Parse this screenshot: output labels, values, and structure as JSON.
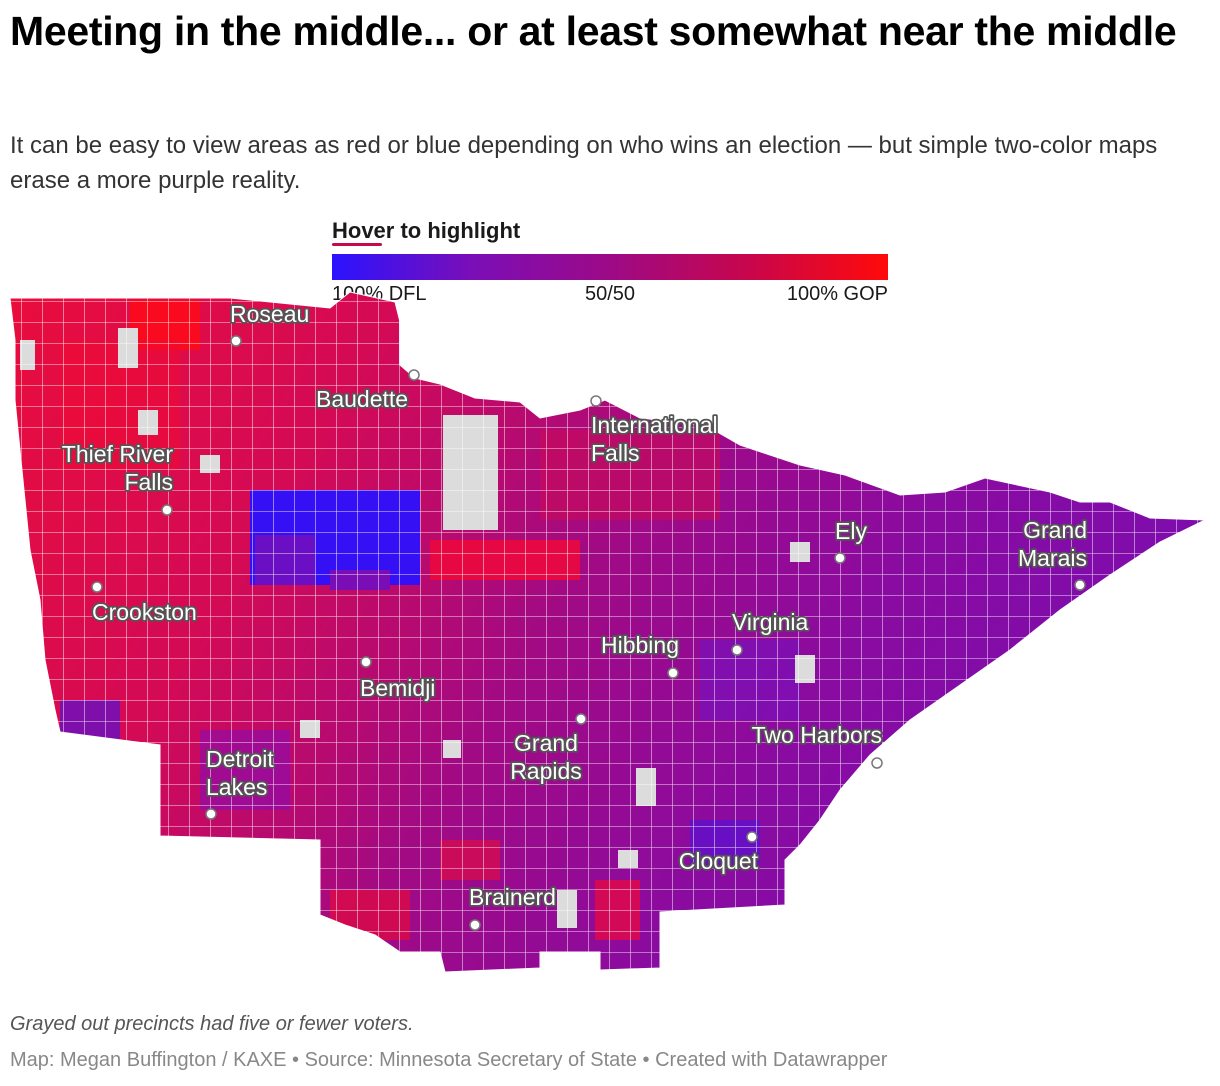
{
  "title": "Meeting in the middle... or at least somewhat near the middle",
  "subtitle": "It can be easy to view areas as red or blue depending on who wins an election — but simple two-color maps erase a more purple reality.",
  "legend": {
    "title": "Hover to highlight",
    "min_label": "100% DFL",
    "mid_label": "50/50",
    "max_label": "100% GOP",
    "colors": [
      "#2b13ff",
      "#7a0eb8",
      "#9d0a86",
      "#c8064c",
      "#ff0a0a"
    ]
  },
  "map": {
    "region": "Northern Minnesota precincts",
    "no_data_color": "#dcdcdc",
    "cities": [
      {
        "name": "Roseau",
        "lines": [
          "Roseau"
        ]
      },
      {
        "name": "Baudette",
        "lines": [
          "Baudette"
        ]
      },
      {
        "name": "International Falls",
        "lines": [
          "International",
          "Falls"
        ]
      },
      {
        "name": "Thief River Falls",
        "lines": [
          "Thief River",
          "Falls"
        ]
      },
      {
        "name": "Ely",
        "lines": [
          "Ely"
        ]
      },
      {
        "name": "Grand Marais",
        "lines": [
          "Grand",
          "Marais"
        ]
      },
      {
        "name": "Crookston",
        "lines": [
          "Crookston"
        ]
      },
      {
        "name": "Virginia",
        "lines": [
          "Virginia"
        ]
      },
      {
        "name": "Hibbing",
        "lines": [
          "Hibbing"
        ]
      },
      {
        "name": "Bemidji",
        "lines": [
          "Bemidji"
        ]
      },
      {
        "name": "Two Harbors",
        "lines": [
          "Two Harbors"
        ]
      },
      {
        "name": "Grand Rapids",
        "lines": [
          "Grand",
          "Rapids"
        ]
      },
      {
        "name": "Detroit Lakes",
        "lines": [
          "Detroit",
          "Lakes"
        ]
      },
      {
        "name": "Cloquet",
        "lines": [
          "Cloquet"
        ]
      },
      {
        "name": "Brainerd",
        "lines": [
          "Brainerd"
        ]
      }
    ]
  },
  "note": "Grayed out precincts had five or fewer voters.",
  "footer": "Map: Megan Buffington / KAXE • Source: Minnesota Secretary of State • Created with Datawrapper"
}
